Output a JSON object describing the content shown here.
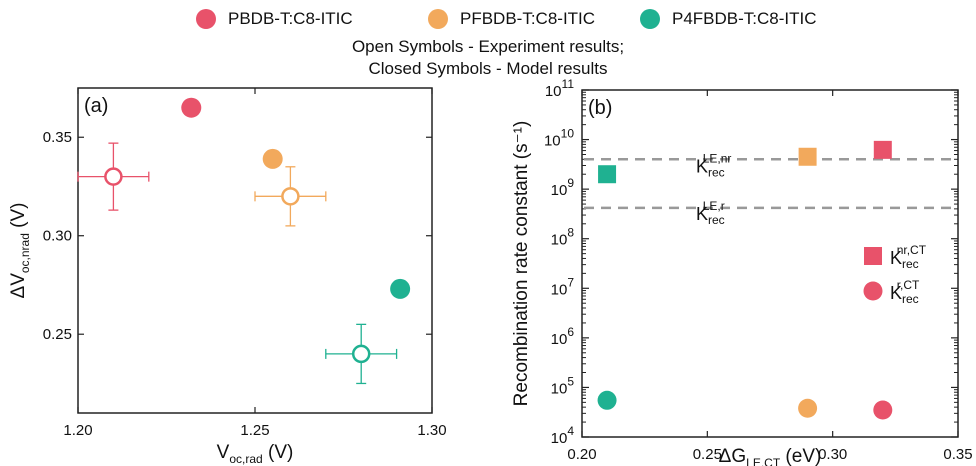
{
  "legend": {
    "items": [
      {
        "label": "PBDB-T:C8-ITIC",
        "color": "#e8526a"
      },
      {
        "label": "PFBDB-T:C8-ITIC",
        "color": "#f2a95c"
      },
      {
        "label": "P4FBDB-T:C8-ITIC",
        "color": "#1fb191"
      }
    ],
    "note_line1": "Open Symbols - Experiment results;",
    "note_line2": "Closed Symbols - Model results"
  },
  "chart_data": [
    {
      "type": "scatter",
      "panel_label": "(a)",
      "xlabel": {
        "main": "V",
        "sub": "oc,rad",
        "unit": " (V)"
      },
      "ylabel": {
        "main": "ΔV",
        "sub": "oc,nrad",
        "unit": " (V)"
      },
      "xlim": [
        1.2,
        1.3
      ],
      "ylim": [
        0.21,
        0.375
      ],
      "x_ticks": [
        "1.20",
        "1.25",
        "1.30"
      ],
      "y_ticks": [
        "0.25",
        "0.30",
        "0.35"
      ],
      "series": [
        {
          "color": "#e8526a",
          "experiment": {
            "x": 1.21,
            "y": 0.33,
            "xerr": 0.01,
            "yerr": 0.017
          },
          "model": {
            "x": 1.232,
            "y": 0.365
          }
        },
        {
          "color": "#f2a95c",
          "experiment": {
            "x": 1.26,
            "y": 0.32,
            "xerr": 0.01,
            "yerr": 0.015
          },
          "model": {
            "x": 1.255,
            "y": 0.339
          }
        },
        {
          "color": "#1fb191",
          "experiment": {
            "x": 1.28,
            "y": 0.24,
            "xerr": 0.01,
            "yerr": 0.015
          },
          "model": {
            "x": 1.291,
            "y": 0.273
          }
        }
      ]
    },
    {
      "type": "scatter",
      "panel_label": "(b)",
      "xlabel": {
        "main": "ΔG",
        "sub": "LE,CT",
        "unit": " (eV)"
      },
      "ylabel": "Recombination rate constant (s⁻¹)",
      "xlim": [
        0.2,
        0.35
      ],
      "ylim_log10": [
        4,
        11
      ],
      "y_scale": "log",
      "x_ticks": [
        "0.20",
        "0.25",
        "0.30",
        "0.35"
      ],
      "y_ticks": [
        {
          "base": "10",
          "exp": "4"
        },
        {
          "base": "10",
          "exp": "5"
        },
        {
          "base": "10",
          "exp": "6"
        },
        {
          "base": "10",
          "exp": "7"
        },
        {
          "base": "10",
          "exp": "8"
        },
        {
          "base": "10",
          "exp": "9"
        },
        {
          "base": "10",
          "exp": "10"
        },
        {
          "base": "10",
          "exp": "11"
        }
      ],
      "ref_lines": [
        {
          "y": 4000000000.0,
          "label_main": "K",
          "label_sub": "rec",
          "label_sup": "LE,nr"
        },
        {
          "y": 420000000.0,
          "label_main": "K",
          "label_sub": "rec",
          "label_sup": "LE,r"
        }
      ],
      "series": [
        {
          "marker": "square",
          "legend_main": "K",
          "legend_sub": "rec",
          "legend_sup": "nr,CT",
          "points": [
            {
              "x": 0.21,
              "y": 2000000000.0,
              "color": "#1fb191"
            },
            {
              "x": 0.29,
              "y": 4500000000.0,
              "color": "#f2a95c"
            },
            {
              "x": 0.32,
              "y": 6200000000.0,
              "color": "#e8526a"
            }
          ]
        },
        {
          "marker": "circle",
          "legend_main": "K",
          "legend_sub": "rec",
          "legend_sup": "r,CT",
          "points": [
            {
              "x": 0.21,
              "y": 55000.0,
              "color": "#1fb191"
            },
            {
              "x": 0.29,
              "y": 38000.0,
              "color": "#f2a95c"
            },
            {
              "x": 0.32,
              "y": 35000.0,
              "color": "#e8526a"
            }
          ]
        }
      ],
      "legend_color": "#e8526a",
      "legend_position": "right"
    }
  ]
}
